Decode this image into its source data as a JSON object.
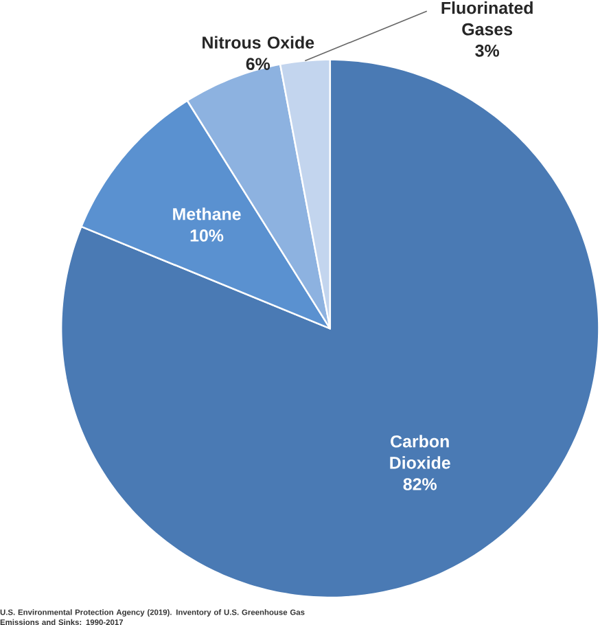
{
  "chart_data": {
    "type": "pie",
    "categories": [
      "Carbon Dioxide",
      "Methane",
      "Nitrous Oxide",
      "Fluorinated Gases"
    ],
    "values": [
      82,
      10,
      6,
      3
    ],
    "value_labels": [
      "82%",
      "10%",
      "6%",
      "3%"
    ],
    "colors": [
      "#4a7ab4",
      "#5a91d0",
      "#8db2e0",
      "#c3d5ee"
    ],
    "annotations": [
      "U.S. Environmental Protection Agency (2019). Inventory of U.S. Greenhouse Gas Emissions and Sinks: 1990-2017"
    ]
  }
}
